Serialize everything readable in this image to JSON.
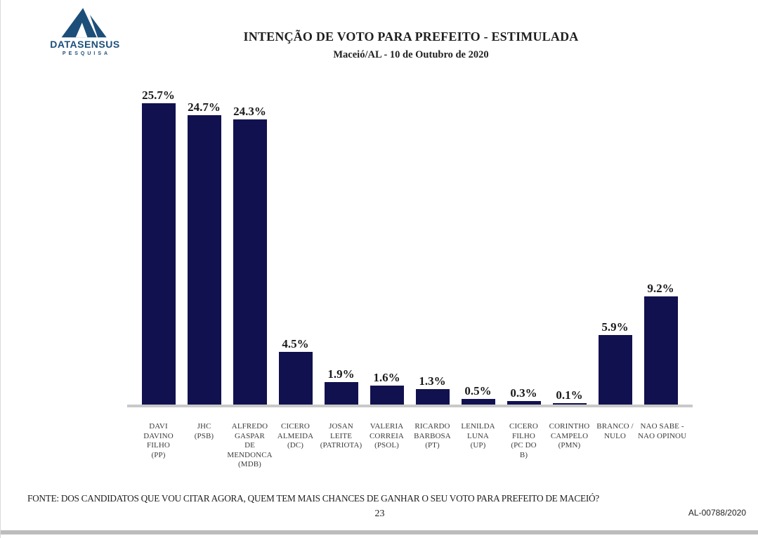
{
  "brand": {
    "name": "DATASENSUS",
    "tagline": "PESQUISA",
    "logo_icon": "triangle-mountain-icon",
    "color": "#1c4e79"
  },
  "header": {
    "title": "INTENÇÃO DE VOTO PARA PREFEITO - ESTIMULADA",
    "subtitle": "Maceió/AL - 10 de Outubro de 2020"
  },
  "chart_data": {
    "type": "bar",
    "title": "INTENÇÃO DE VOTO PARA PREFEITO - ESTIMULADA",
    "subtitle": "Maceió/AL - 10 de Outubro de 2020",
    "categories": [
      "DAVI DAVINO FILHO (PP)",
      "JHC (PSB)",
      "ALFREDO GASPAR DE MENDONCA (MDB)",
      "CICERO ALMEIDA (DC)",
      "JOSAN LEITE (PATRIOTA)",
      "VALERIA CORREIA (PSOL)",
      "RICARDO BARBOSA (PT)",
      "LENILDA LUNA (UP)",
      "CICERO FILHO (PC DO B)",
      "CORINTHO CAMPELO (PMN)",
      "BRANCO / NULO",
      "NAO SABE  - NAO OPINOU"
    ],
    "categories_lines": [
      [
        "DAVI",
        "DAVINO",
        "FILHO",
        "(PP)"
      ],
      [
        "JHC",
        "(PSB)"
      ],
      [
        "ALFREDO",
        "GASPAR",
        "DE",
        "MENDONCA",
        "(MDB)"
      ],
      [
        "CICERO",
        "ALMEIDA",
        "(DC)"
      ],
      [
        "JOSAN",
        "LEITE",
        "(PATRIOTA)"
      ],
      [
        "VALERIA",
        "CORREIA",
        "(PSOL)"
      ],
      [
        "RICARDO",
        "BARBOSA",
        "(PT)"
      ],
      [
        "LENILDA",
        "LUNA",
        "(UP)"
      ],
      [
        "CICERO",
        "FILHO",
        "(PC DO",
        "B)"
      ],
      [
        "CORINTHO",
        "CAMPELO",
        "(PMN)"
      ],
      [
        "BRANCO /",
        "NULO"
      ],
      [
        "NAO SABE  -",
        "NAO OPINOU"
      ]
    ],
    "values": [
      25.7,
      24.7,
      24.3,
      4.5,
      1.9,
      1.6,
      1.3,
      0.5,
      0.3,
      0.1,
      5.9,
      9.2
    ],
    "value_labels": [
      "25.7%",
      "24.7%",
      "24.3%",
      "4.5%",
      "1.9%",
      "1.6%",
      "1.3%",
      "0.5%",
      "0.3%",
      "0.1%",
      "5.9%",
      "9.2%"
    ],
    "bar_color": "#111150",
    "axis_color": "#c9c9c9",
    "ylim": [
      0,
      27
    ],
    "grid": false,
    "legend": "none",
    "value_labels_position": "above-bars"
  },
  "footer": {
    "source": "FONTE: DOS CANDIDATOS QUE VOU CITAR AGORA, QUEM TEM MAIS CHANCES DE GANHAR O SEU VOTO PARA PREFEITO DE MACEIÓ?",
    "page_number": "23",
    "document_code": "AL-00788/2020"
  }
}
